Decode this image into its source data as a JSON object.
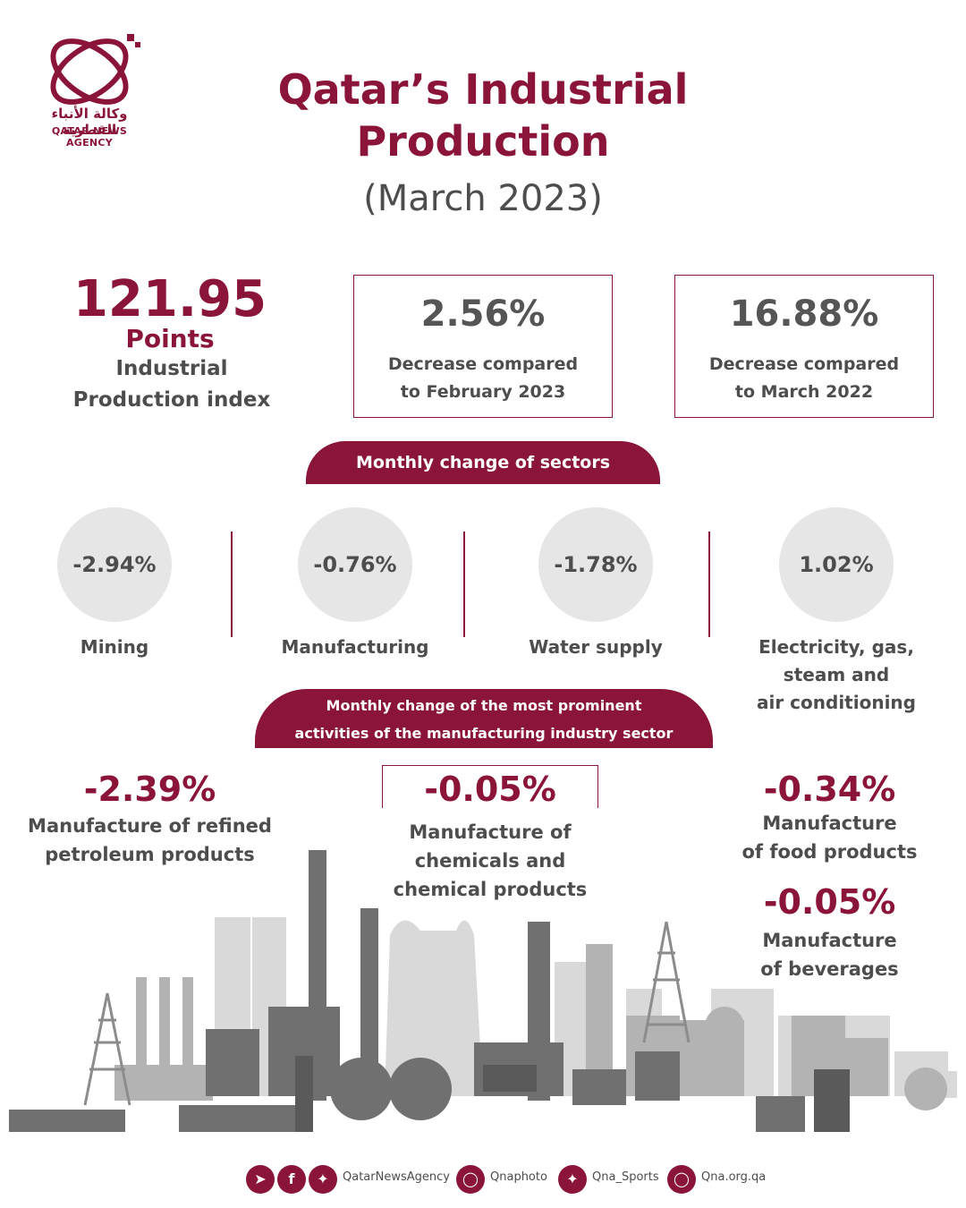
{
  "logo": {
    "arabic_name": "وكالة الأنباء القطرية",
    "english_name": "QATAR NEWS AGENCY"
  },
  "title": {
    "line1": "Qatar’s Industrial",
    "line2": "Production",
    "period": "(March 2023)"
  },
  "index": {
    "value": "121.95",
    "unit": "Points",
    "label_line1": "Industrial",
    "label_line2": "Production index"
  },
  "stats": [
    {
      "value": "2.56%",
      "label_line1": "Decrease compared",
      "label_line2": "to February 2023"
    },
    {
      "value": "16.88%",
      "label_line1": "Decrease compared",
      "label_line2": "to March 2022"
    }
  ],
  "sectors_heading": "Monthly change of sectors",
  "sectors": [
    {
      "value": "-2.94%",
      "label": "Mining"
    },
    {
      "value": "-0.76%",
      "label": "Manufacturing"
    },
    {
      "value": "-1.78%",
      "label": "Water supply"
    },
    {
      "value": "1.02%",
      "label_line1": "Electricity, gas,",
      "label_line2": "steam and",
      "label_line3": "air conditioning"
    }
  ],
  "activities_heading": {
    "line1": "Monthly change of the most prominent",
    "line2": "activities of the manufacturing industry sector"
  },
  "activities": [
    {
      "value": "-2.39%",
      "label_line1": "Manufacture of refined",
      "label_line2": "petroleum products"
    },
    {
      "value": "-0.05%",
      "label_line1": "Manufacture of",
      "label_line2": "chemicals and",
      "label_line3": "chemical products"
    },
    {
      "value": "-0.34%",
      "label_line1": "Manufacture",
      "label_line2": "of food products"
    },
    {
      "value": "-0.05%",
      "label_line1": "Manufacture",
      "label_line2": "of beverages"
    }
  ],
  "footer": {
    "handle1": "QatarNewsAgency",
    "handle2": "Qnaphoto",
    "handle3": "Qna_Sports",
    "website": "Qna.org.qa"
  },
  "colors": {
    "brand": "#8a1538",
    "text": "#4d4d4d",
    "circle": "#e6e6e6"
  }
}
